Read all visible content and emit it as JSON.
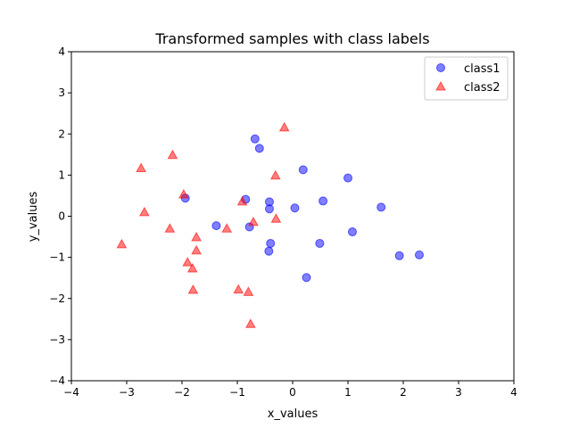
{
  "chart_data": {
    "type": "scatter",
    "title": "Transformed samples with class labels",
    "xlabel": "x_values",
    "ylabel": "y_values",
    "xlim": [
      -4,
      4
    ],
    "ylim": [
      -4,
      4
    ],
    "xticks": [
      -4,
      -3,
      -2,
      -1,
      0,
      1,
      2,
      3,
      4
    ],
    "yticks": [
      -4,
      -3,
      -2,
      -1,
      0,
      1,
      2,
      3,
      4
    ],
    "xtick_labels": [
      "−4",
      "−3",
      "−2",
      "−1",
      "0",
      "1",
      "2",
      "3",
      "4"
    ],
    "ytick_labels": [
      "−4",
      "−3",
      "−2",
      "−1",
      "0",
      "1",
      "2",
      "3",
      "4"
    ],
    "grid": false,
    "legend_position": "top-right",
    "series": [
      {
        "name": "class1",
        "marker": "circle",
        "color": "#0000ff",
        "points": [
          [
            -0.68,
            1.88
          ],
          [
            -0.6,
            1.65
          ],
          [
            0.19,
            1.13
          ],
          [
            1.0,
            0.93
          ],
          [
            -1.94,
            0.44
          ],
          [
            -0.85,
            0.41
          ],
          [
            -0.42,
            0.35
          ],
          [
            0.55,
            0.37
          ],
          [
            -0.42,
            0.18
          ],
          [
            0.04,
            0.2
          ],
          [
            1.6,
            0.22
          ],
          [
            -1.38,
            -0.23
          ],
          [
            -0.78,
            -0.26
          ],
          [
            1.08,
            -0.38
          ],
          [
            -0.4,
            -0.66
          ],
          [
            0.49,
            -0.66
          ],
          [
            -0.43,
            -0.85
          ],
          [
            1.93,
            -0.96
          ],
          [
            2.29,
            -0.94
          ],
          [
            0.25,
            -1.49
          ]
        ]
      },
      {
        "name": "class2",
        "marker": "triangle",
        "color": "#ff0000",
        "points": [
          [
            -0.15,
            2.15
          ],
          [
            -2.17,
            1.48
          ],
          [
            -2.74,
            1.16
          ],
          [
            -0.31,
            0.98
          ],
          [
            -1.97,
            0.52
          ],
          [
            -0.91,
            0.35
          ],
          [
            -2.68,
            0.09
          ],
          [
            -0.71,
            -0.15
          ],
          [
            -0.3,
            -0.07
          ],
          [
            -2.22,
            -0.31
          ],
          [
            -1.19,
            -0.31
          ],
          [
            -1.74,
            -0.52
          ],
          [
            -3.09,
            -0.69
          ],
          [
            -1.74,
            -0.84
          ],
          [
            -1.9,
            -1.13
          ],
          [
            -1.81,
            -1.28
          ],
          [
            -0.98,
            -1.79
          ],
          [
            -1.8,
            -1.8
          ],
          [
            -0.8,
            -1.85
          ],
          [
            -0.76,
            -2.63
          ]
        ]
      }
    ]
  }
}
